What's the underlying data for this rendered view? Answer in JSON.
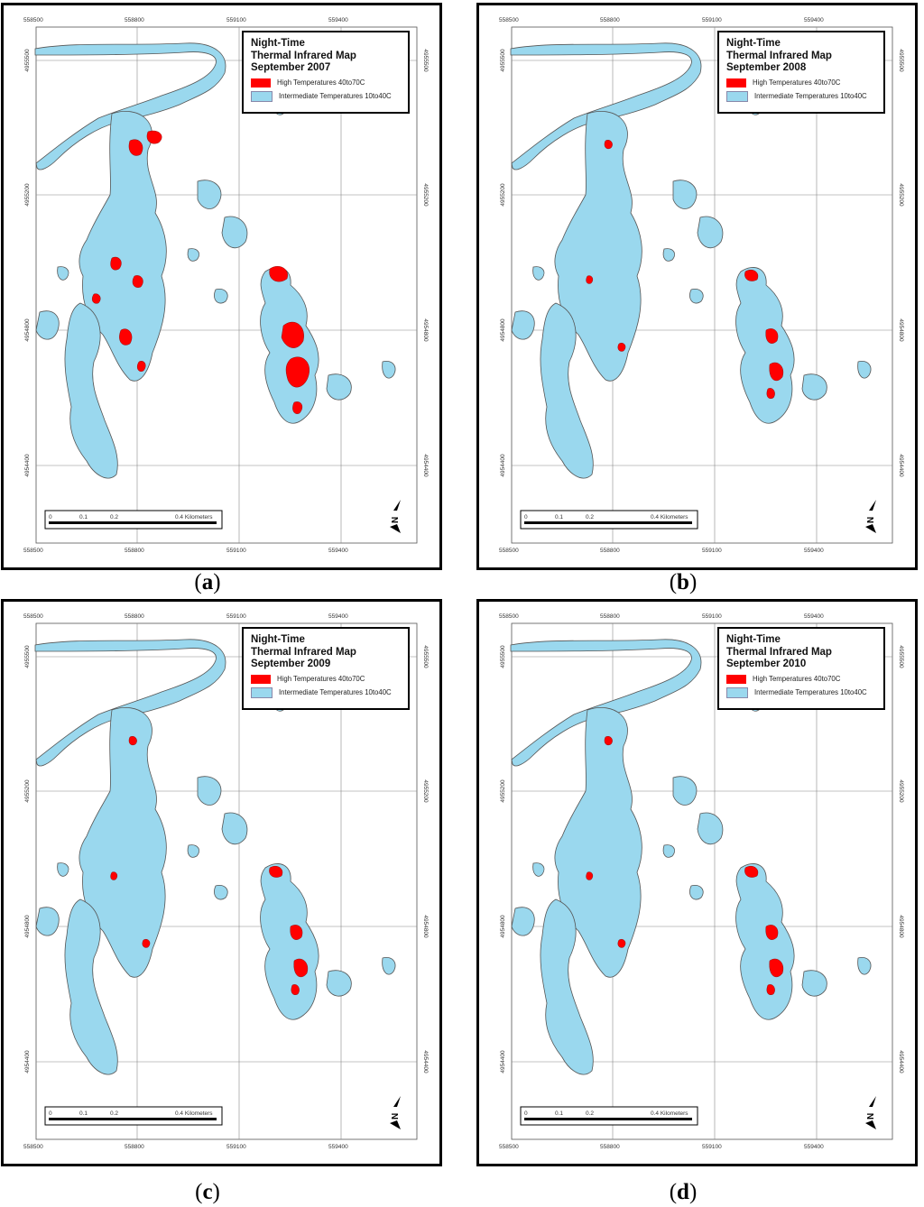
{
  "legend": {
    "title_line1": "Night-Time",
    "title_line2": "Thermal Infrared Map",
    "high_label": "High Temperatures 40to70C",
    "inter_label": "Intermediate Temperatures 10to40C",
    "high_color": "#ff0000",
    "inter_color": "#9ad8ee"
  },
  "panels": [
    {
      "id": "a",
      "date": "September 2007",
      "caption_letter": "a",
      "hot_level": "high"
    },
    {
      "id": "b",
      "date": "September 2008",
      "caption_letter": "b",
      "hot_level": "medium"
    },
    {
      "id": "c",
      "date": "September 2009",
      "caption_letter": "c",
      "hot_level": "medium"
    },
    {
      "id": "d",
      "date": "September 2010",
      "caption_letter": "d",
      "hot_level": "medium"
    }
  ],
  "grid_labels": {
    "eastings": [
      "558500",
      "558800",
      "559100",
      "559400"
    ],
    "northings": [
      "4955500",
      "4955200",
      "4954800",
      "4954400"
    ]
  },
  "scalebar": {
    "ticks": [
      "0",
      "0.1",
      "0.2",
      "0.4 Kilometers"
    ]
  },
  "north_arrow": {
    "letter": "N",
    "icon": "north-arrow-icon"
  }
}
